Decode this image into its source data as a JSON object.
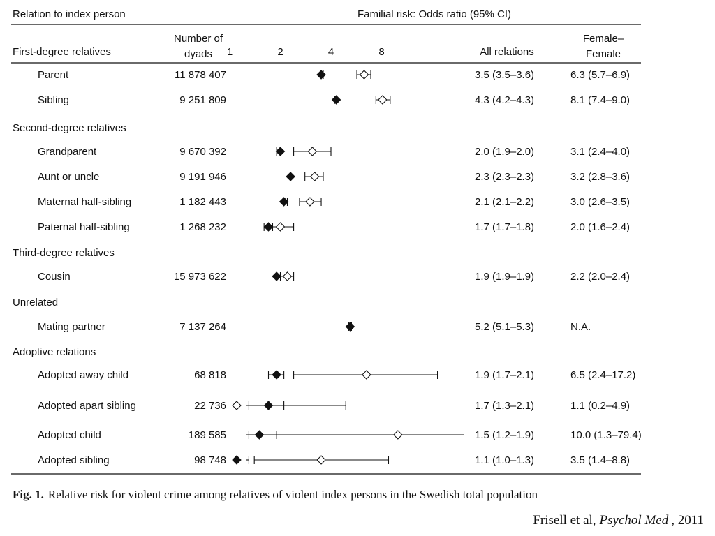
{
  "header": {
    "relation_label": "Relation to index person",
    "risk_label": "Familial risk: Odds ratio (95% CI)",
    "first_degree": "First-degree relatives",
    "number_line1": "Number of",
    "number_line2": "dyads",
    "all_relations": "All relations",
    "ff_line1": "Female–",
    "ff_line2": "Female"
  },
  "caption": {
    "prefix": "Fig. 1.",
    "text": "Relative risk for violent crime among relatives of violent index persons in the Swedish total population"
  },
  "citation": {
    "author": "Frisell et al,",
    "journal": "Psychol Med",
    "year": ", 2011"
  },
  "chart_data": {
    "type": "forest",
    "x_scale": "log2",
    "x_ticks": [
      "1",
      "2",
      "4",
      "8"
    ],
    "x_tick_values": [
      1,
      2,
      4,
      8
    ],
    "series": [
      {
        "name": "All relations",
        "marker": "filled-diamond"
      },
      {
        "name": "Female–Female",
        "marker": "open-diamond"
      }
    ],
    "groups": [
      {
        "name": "First-degree relatives",
        "rows": [
          {
            "label": "Parent",
            "dyads": "11 878 407",
            "all_text": "3.5 (3.5–3.6)",
            "ff_text": "6.3 (5.7–6.9)",
            "all": [
              3.5,
              3.5,
              3.6
            ],
            "ff": [
              6.3,
              5.7,
              6.9
            ]
          },
          {
            "label": "Sibling",
            "dyads": "9 251 809",
            "all_text": "4.3 (4.2–4.3)",
            "ff_text": "8.1 (7.4–9.0)",
            "all": [
              4.3,
              4.2,
              4.3
            ],
            "ff": [
              8.1,
              7.4,
              9.0
            ]
          }
        ]
      },
      {
        "name": "Second-degree relatives",
        "rows": [
          {
            "label": "Grandparent",
            "dyads": "9 670 392",
            "all_text": "2.0 (1.9–2.0)",
            "ff_text": "3.1 (2.4–4.0)",
            "all": [
              2.0,
              1.9,
              2.0
            ],
            "ff": [
              3.1,
              2.4,
              4.0
            ]
          },
          {
            "label": "Aunt or uncle",
            "dyads": "9 191 946",
            "all_text": "2.3 (2.3–2.3)",
            "ff_text": "3.2 (2.8–3.6)",
            "all": [
              2.3,
              2.3,
              2.3
            ],
            "ff": [
              3.2,
              2.8,
              3.6
            ]
          },
          {
            "label": "Maternal half-sibling",
            "dyads": "1 182 443",
            "all_text": "2.1 (2.1–2.2)",
            "ff_text": "3.0 (2.6–3.5)",
            "all": [
              2.1,
              2.1,
              2.2
            ],
            "ff": [
              3.0,
              2.6,
              3.5
            ]
          },
          {
            "label": "Paternal half-sibling",
            "dyads": "1 268 232",
            "all_text": "1.7 (1.7–1.8)",
            "ff_text": "2.0 (1.6–2.4)",
            "all": [
              1.7,
              1.7,
              1.8
            ],
            "ff": [
              2.0,
              1.6,
              2.4
            ]
          }
        ]
      },
      {
        "name": "Third-degree relatives",
        "rows": [
          {
            "label": "Cousin",
            "dyads": "15 973 622",
            "all_text": "1.9 (1.9–1.9)",
            "ff_text": "2.2 (2.0–2.4)",
            "all": [
              1.9,
              1.9,
              1.9
            ],
            "ff": [
              2.2,
              2.0,
              2.4
            ]
          }
        ]
      },
      {
        "name": "Unrelated",
        "rows": [
          {
            "label": "Mating partner",
            "dyads": "7 137 264",
            "all_text": "5.2 (5.1–5.3)",
            "ff_text": "N.A.",
            "all": [
              5.2,
              5.1,
              5.3
            ],
            "ff": null
          }
        ]
      },
      {
        "name": "Adoptive relations",
        "rows": [
          {
            "label": "Adopted away child",
            "dyads": "68 818",
            "all_text": "1.9 (1.7–2.1)",
            "ff_text": "6.5 (2.4–17.2)",
            "all": [
              1.9,
              1.7,
              2.1
            ],
            "ff": [
              6.5,
              2.4,
              17.2
            ]
          },
          {
            "label": "Adopted apart sibling",
            "dyads": "22 736",
            "all_text": "1.7 (1.3–2.1)",
            "ff_text": "1.1 (0.2–4.9)",
            "all": [
              1.7,
              1.3,
              2.1
            ],
            "ff": [
              1.1,
              0.2,
              4.9
            ]
          },
          {
            "label": "Adopted child",
            "dyads": "189 585",
            "all_text": "1.5 (1.2–1.9)",
            "ff_text": "10.0 (1.3–79.4)",
            "all": [
              1.5,
              1.2,
              1.9
            ],
            "ff": [
              10.0,
              1.3,
              79.4
            ]
          },
          {
            "label": "Adopted sibling",
            "dyads": "98 748",
            "all_text": "1.1 (1.0–1.3)",
            "ff_text": "3.5 (1.4–8.8)",
            "all": [
              1.1,
              1.0,
              1.3
            ],
            "ff": [
              3.5,
              1.4,
              8.8
            ]
          }
        ]
      }
    ]
  }
}
